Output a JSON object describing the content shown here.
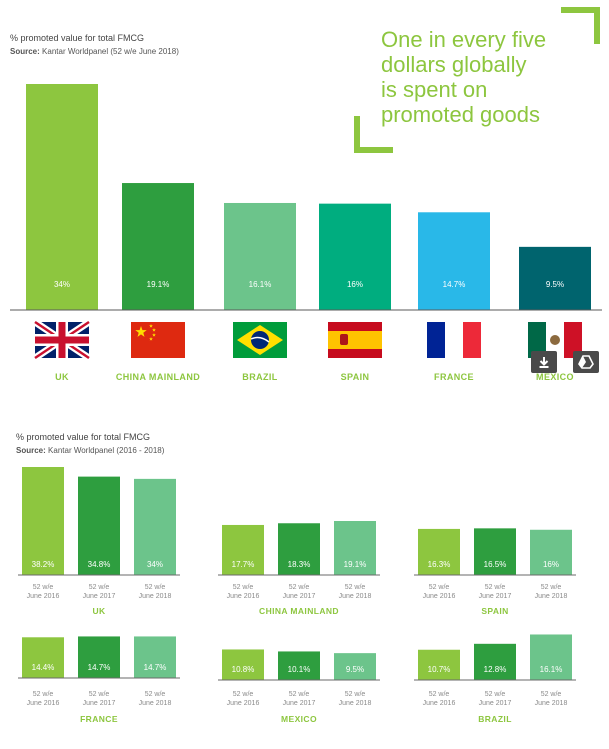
{
  "top_section": {
    "title": "% promoted value for total FMCG",
    "source_label": "Source:",
    "source_text": "Kantar Worldpanel  (52 w/e June 2018)"
  },
  "headline": [
    "One in every five",
    "dollars globally",
    "is spent on",
    "promoted goods"
  ],
  "bottom_section": {
    "title": "% promoted value for total FMCG",
    "source_label": "Source:",
    "source_text": "Kantar Worldpanel (2016 - 2018)"
  },
  "chart_data": [
    {
      "type": "bar",
      "title": "% promoted value for total FMCG",
      "categories": [
        "UK",
        "CHINA MAINLAND",
        "BRAZIL",
        "SPAIN",
        "FRANCE",
        "MEXICO"
      ],
      "values": [
        34,
        19.1,
        16.1,
        16,
        14.7,
        9.5
      ],
      "labels": [
        "34%",
        "19.1%",
        "16.1%",
        "16%",
        "14.7%",
        "9.5%"
      ],
      "colors": [
        "#8dc63f",
        "#2e9e3f",
        "#6cc48b",
        "#00ad7f",
        "#29b8e8",
        "#00646e"
      ],
      "ylim": [
        0,
        34
      ],
      "grid": false,
      "flags": [
        "uk-flag-icon",
        "china-flag-icon",
        "brazil-flag-icon",
        "spain-flag-icon",
        "france-flag-icon",
        "mexico-flag-icon"
      ]
    },
    {
      "type": "bar",
      "title": "% promoted value for total FMCG",
      "categories": [
        "52 w/e June 2016",
        "52 w/e June 2017",
        "52 w/e June 2018"
      ],
      "tick_lines": [
        [
          "52 w/e",
          "June 2016"
        ],
        [
          "52 w/e",
          "June 2017"
        ],
        [
          "52 w/e",
          "June 2018"
        ]
      ],
      "colors": [
        "#8dc63f",
        "#2e9e3f",
        "#6cc48b"
      ],
      "ylim": [
        0,
        38.2
      ],
      "grid": false,
      "panels": [
        {
          "name": "UK",
          "values": [
            38.2,
            34.8,
            34
          ],
          "labels": [
            "38.2%",
            "34.8%",
            "34%"
          ]
        },
        {
          "name": "CHINA MAINLAND",
          "values": [
            17.7,
            18.3,
            19.1
          ],
          "labels": [
            "17.7%",
            "18.3%",
            "19.1%"
          ]
        },
        {
          "name": "SPAIN",
          "values": [
            16.3,
            16.5,
            16
          ],
          "labels": [
            "16.3%",
            "16.5%",
            "16%"
          ]
        },
        {
          "name": "FRANCE",
          "values": [
            14.4,
            14.7,
            14.7
          ],
          "labels": [
            "14.4%",
            "14.7%",
            "14.7%"
          ]
        },
        {
          "name": "MEXICO",
          "values": [
            10.8,
            10.1,
            9.5
          ],
          "labels": [
            "10.8%",
            "10.1%",
            "9.5%"
          ]
        },
        {
          "name": "BRAZIL",
          "values": [
            10.7,
            12.8,
            16.1
          ],
          "labels": [
            "10.7%",
            "12.8%",
            "16.1%"
          ]
        }
      ]
    }
  ],
  "overlay": {
    "download_icon": "download-icon",
    "drive_icon": "google-drive-icon"
  }
}
